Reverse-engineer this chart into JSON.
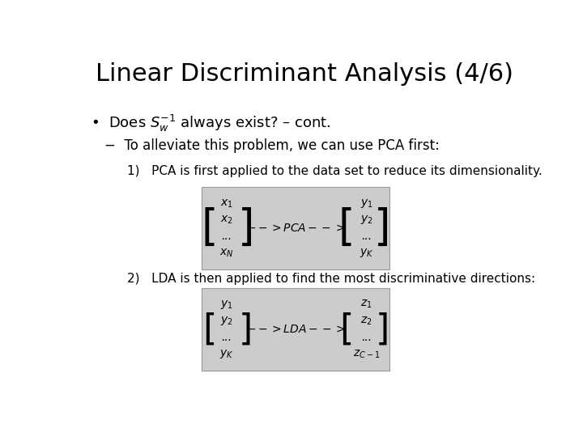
{
  "title": "Linear Discriminant Analysis (4/6)",
  "title_fontsize": 22,
  "bg_color": "#ffffff",
  "bullet1": "•  Does $S_w^{-1}$ always exist? – cont.",
  "sub1": "−  To alleviate this problem, we can use PCA first:",
  "item1": "1)   PCA is first applied to the data set to reduce its dimensionality.",
  "item2": "2)   LDA is then applied to find the most discriminative directions:",
  "pca_arrow": "$-- > PCA -- >$",
  "lda_arrow": "$-- > LDA -- >$",
  "box1_left": [
    "$x_1$",
    "$x_2$",
    "...",
    "$x_N$"
  ],
  "box1_right": [
    "$y_1$",
    "$y_2$",
    "...",
    "$y_K$"
  ],
  "box2_left": [
    "$y_1$",
    "$y_2$",
    "...",
    "$y_K$"
  ],
  "box2_right": [
    "$z_1$",
    "$z_2$",
    "...",
    "$z_{C-1}$"
  ],
  "box_bg": "#cccccc",
  "text_color": "#000000",
  "bullet_fontsize": 13,
  "sub_fontsize": 12,
  "item_fontsize": 11,
  "matrix_fontsize": 10,
  "arrow_fontsize": 10,
  "bracket_fontsize": 38,
  "bracket_fontsize2": 32
}
